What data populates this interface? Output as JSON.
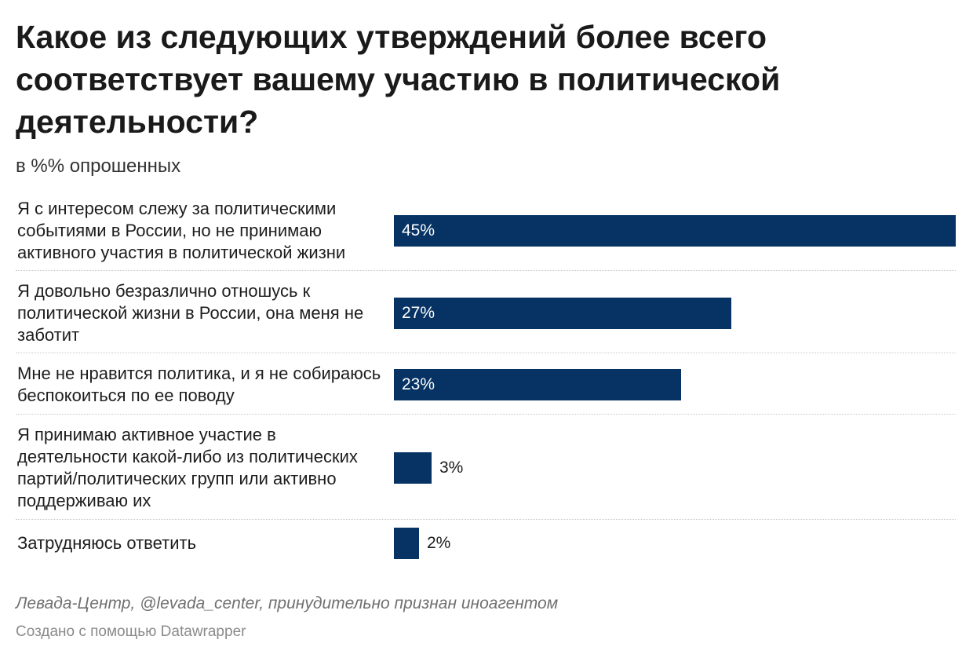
{
  "title": "Какое из следующих утверждений более всего соответствует вашему участию в политической деятельности?",
  "subtitle": "в %% опрошенных",
  "bar_color": "#063364",
  "chart_data": {
    "type": "bar",
    "orientation": "horizontal",
    "categories": [
      "Я с интересом слежу за политическими событиями в России, но не принимаю активного участия в политической жизни",
      "Я довольно безразлично отношусь к политической жизни в России, она меня не заботит",
      "Мне не нравится политика, и я не собираюсь беспокоиться по ее поводу",
      "Я принимаю активное участие в деятельности какой-либо из политических партий/политических групп или активно поддерживаю их",
      "Затрудняюсь ответить"
    ],
    "values": [
      45,
      27,
      23,
      3,
      2
    ],
    "value_labels": [
      "45%",
      "27%",
      "23%",
      "3%",
      "2%"
    ],
    "xlim": [
      0,
      45
    ],
    "grid": false
  },
  "source": "Левада-Центр, @levada_center, принудительно признан иноагентом",
  "credit": "Создано с помощью Datawrapper"
}
